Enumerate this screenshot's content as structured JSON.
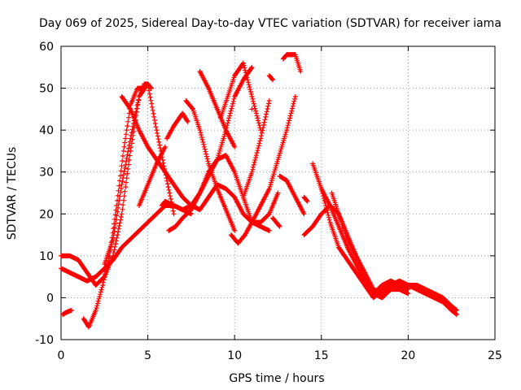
{
  "chart_data": {
    "type": "scatter",
    "title": "Day 069 of 2025, Sidereal Day-to-day VTEC variation (SDTVAR) for receiver iama",
    "xlabel": "GPS time / hours",
    "ylabel": "SDTVAR / TECUs",
    "xlim": [
      0,
      25
    ],
    "ylim": [
      -10,
      60
    ],
    "xticks": [
      "0",
      "5",
      "10",
      "15",
      "20",
      "25"
    ],
    "yticks": [
      "-10",
      "0",
      "10",
      "20",
      "30",
      "40",
      "50",
      "60"
    ],
    "grid": true,
    "marker": "plus",
    "color": "#ff0000",
    "series": [
      {
        "name": "s1",
        "x": [
          0.0,
          0.5,
          1.0,
          1.5,
          2.0,
          2.5,
          3.0,
          3.5,
          4.0,
          4.5,
          5.0,
          5.5,
          6.0,
          6.5,
          7.0,
          7.5,
          8.0,
          8.5,
          9.0,
          9.5,
          10.0,
          10.5,
          11.0
        ],
        "y": [
          7,
          6,
          5,
          4,
          5,
          7,
          9,
          12,
          14,
          16,
          18,
          20,
          22,
          22,
          21,
          22,
          25,
          29,
          33,
          40,
          48,
          52,
          55
        ]
      },
      {
        "name": "s2",
        "x": [
          0.0,
          0.5,
          1.0,
          1.5,
          2.0,
          2.5,
          3.0,
          3.5,
          4.0,
          4.5
        ],
        "y": [
          10,
          10,
          9,
          6,
          3,
          5,
          10,
          20,
          35,
          48
        ]
      },
      {
        "name": "s3",
        "x": [
          0.1,
          0.3,
          0.6
        ],
        "y": [
          -4,
          -3.5,
          -3
        ]
      },
      {
        "name": "s4",
        "x": [
          1.3,
          1.6,
          2.0,
          2.4,
          2.8,
          3.2,
          3.6,
          4.0,
          4.4,
          4.8
        ],
        "y": [
          -5,
          -7,
          -3,
          3,
          10,
          22,
          35,
          46,
          50,
          50
        ]
      },
      {
        "name": "s5",
        "x": [
          2.5,
          3.0,
          3.5,
          4.0,
          4.5,
          5.0,
          5.5,
          6.0,
          6.5
        ],
        "y": [
          8,
          14,
          27,
          38,
          48,
          51,
          40,
          30,
          20
        ]
      },
      {
        "name": "s6",
        "x": [
          3.5,
          4.0,
          4.5,
          5.0,
          5.5,
          6.0,
          6.5,
          7.0,
          7.5,
          8.0,
          8.5,
          9.0,
          9.5,
          10.0,
          10.5,
          11.0,
          11.5,
          12.0,
          12.5
        ],
        "y": [
          48,
          45,
          40,
          36,
          33,
          30,
          27,
          24,
          22,
          21,
          24,
          27,
          26,
          24,
          20,
          18,
          18,
          20,
          25
        ]
      },
      {
        "name": "s7",
        "x": [
          4.5,
          5.0,
          5.5,
          6.0
        ],
        "y": [
          22,
          27,
          32,
          36
        ]
      },
      {
        "name": "s8",
        "x": [
          4.6,
          4.8,
          5.0,
          5.2
        ],
        "y": [
          49,
          51,
          51,
          50
        ]
      },
      {
        "name": "s9",
        "x": [
          5.8,
          6.0,
          6.5,
          7.0,
          7.5
        ],
        "y": [
          22,
          23,
          22,
          21,
          20
        ]
      },
      {
        "name": "s10",
        "x": [
          6.1,
          6.5,
          7.0,
          7.3
        ],
        "y": [
          38,
          41,
          44,
          42
        ]
      },
      {
        "name": "s11",
        "x": [
          6.2,
          6.6,
          7.0,
          7.5,
          8.0,
          8.5,
          9.0,
          9.5,
          10.0,
          10.5,
          11.0,
          11.5,
          12.0
        ],
        "y": [
          16,
          17,
          19,
          21,
          25,
          30,
          33,
          34,
          30,
          24,
          18,
          17,
          16
        ]
      },
      {
        "name": "s12",
        "x": [
          7.2,
          7.6,
          8.0,
          8.5,
          9.0,
          9.5,
          10.0
        ],
        "y": [
          47,
          45,
          40,
          32,
          26,
          21,
          16
        ]
      },
      {
        "name": "s13",
        "x": [
          8.0,
          8.5,
          9.0,
          9.5,
          10.0
        ],
        "y": [
          54,
          50,
          45,
          40,
          36
        ]
      },
      {
        "name": "s14",
        "x": [
          9.2,
          9.6,
          10.0,
          10.5,
          11.0,
          11.5
        ],
        "y": [
          43,
          48,
          53,
          56,
          48,
          40
        ]
      },
      {
        "name": "s15",
        "x": [
          9.8,
          10.2,
          10.6,
          11.0,
          11.5,
          12.0,
          12.5,
          13.0,
          13.5
        ],
        "y": [
          15,
          13,
          15,
          18,
          22,
          26,
          33,
          40,
          48
        ]
      },
      {
        "name": "s16",
        "x": [
          10.5,
          11.0,
          11.5,
          12.0
        ],
        "y": [
          24,
          30,
          38,
          47
        ]
      },
      {
        "name": "s17",
        "x": [
          11.0
        ],
        "y": [
          45
        ]
      },
      {
        "name": "s18",
        "x": [
          12.0,
          12.2
        ],
        "y": [
          53,
          52
        ]
      },
      {
        "name": "s19",
        "x": [
          12.2,
          12.6
        ],
        "y": [
          19,
          17
        ]
      },
      {
        "name": "s20",
        "x": [
          12.6,
          13.0,
          13.5,
          14.0
        ],
        "y": [
          29,
          28,
          24,
          20
        ]
      },
      {
        "name": "s21",
        "x": [
          12.8,
          13.0,
          13.2,
          13.5,
          13.8
        ],
        "y": [
          57,
          58,
          58,
          58,
          54
        ]
      },
      {
        "name": "s22",
        "x": [
          14.0,
          14.5,
          15.0,
          15.5,
          16.0,
          16.5,
          17.0,
          17.5,
          18.0,
          18.5,
          19.0,
          19.5,
          20.0,
          20.5,
          21.0,
          21.5,
          22.0,
          22.5,
          22.8
        ],
        "y": [
          15,
          17,
          20,
          22,
          20,
          15,
          10,
          5,
          1,
          0,
          2,
          3,
          3,
          3,
          2,
          1,
          0,
          -2,
          -3
        ]
      },
      {
        "name": "s23",
        "x": [
          14.5,
          15.0,
          15.5,
          16.0,
          16.5,
          17.0,
          17.5,
          18.0,
          18.5,
          19.0,
          19.5,
          20.0,
          20.5,
          21.0,
          21.5,
          22.0,
          22.5,
          22.8
        ],
        "y": [
          32,
          26,
          18,
          12,
          9,
          6,
          3,
          0,
          2,
          3,
          4,
          3,
          2,
          1,
          0,
          -1,
          -3,
          -4
        ]
      },
      {
        "name": "s24",
        "x": [
          15.0,
          15.5,
          16.0,
          16.5,
          17.0,
          17.5,
          18.0,
          18.5,
          19.0,
          19.5,
          20.0
        ],
        "y": [
          26,
          22,
          17,
          12,
          8,
          4,
          1,
          3,
          4,
          3,
          2
        ]
      },
      {
        "name": "s25",
        "x": [
          15.6,
          16.0,
          16.5,
          17.0,
          17.5,
          18.0,
          18.5,
          19.0,
          19.5,
          20.0
        ],
        "y": [
          25,
          20,
          14,
          10,
          6,
          2,
          1,
          2,
          2,
          1
        ]
      },
      {
        "name": "s26",
        "x": [
          14.0,
          14.2
        ],
        "y": [
          24,
          23
        ]
      }
    ]
  }
}
